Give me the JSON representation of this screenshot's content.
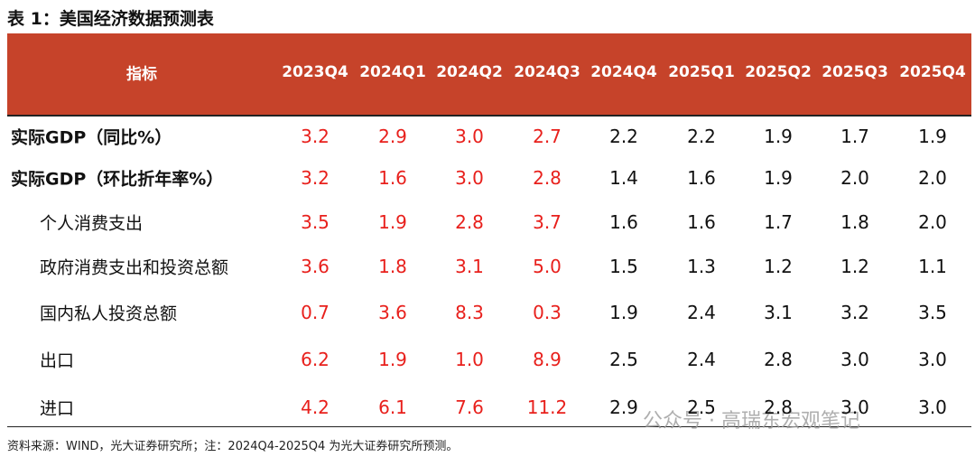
{
  "title": "表 1：美国经济数据预测表",
  "table": {
    "header": [
      "指标",
      "2023Q4",
      "2024Q1",
      "2024Q2",
      "2024Q3",
      "2024Q4",
      "2025Q1",
      "2025Q2",
      "2025Q3",
      "2025Q4"
    ],
    "rows": [
      {
        "label": "实际GDP（同比%）",
        "values": [
          "3.2",
          "2.9",
          "3.0",
          "2.7",
          "2.2",
          "2.2",
          "1.9",
          "1.7",
          "1.9"
        ]
      },
      {
        "label": "实际GDP（环比折年率%）",
        "values": [
          "3.2",
          "1.6",
          "3.0",
          "2.8",
          "1.4",
          "1.6",
          "1.9",
          "2.0",
          "2.0"
        ],
        "components": [
          {
            "label": "个人消费支出",
            "values": [
              "3.5",
              "1.9",
              "2.8",
              "3.7",
              "1.6",
              "1.6",
              "1.7",
              "1.8",
              "2.0"
            ]
          },
          {
            "label": "政府消费支出和投资总额",
            "values": [
              "3.6",
              "1.8",
              "3.1",
              "5.0",
              "1.5",
              "1.3",
              "1.2",
              "1.2",
              "1.1"
            ]
          },
          {
            "label": "国内私人投资总额",
            "values": [
              "0.7",
              "3.6",
              "8.3",
              "0.3",
              "1.9",
              "2.4",
              "3.1",
              "3.2",
              "3.5"
            ]
          },
          {
            "label": "出口",
            "values": [
              "6.2",
              "1.9",
              "1.0",
              "8.9",
              "2.5",
              "2.4",
              "2.8",
              "3.0",
              "3.0"
            ]
          },
          {
            "label": "进口",
            "values": [
              "4.2",
              "6.1",
              "7.6",
              "11.2",
              "2.9",
              "2.5",
              "2.8",
              "3.0",
              "3.0"
            ]
          }
        ]
      }
    ]
  },
  "source": "资料来源：WIND，光大证券研究所；注：2024Q4-2025Q4 为光大证券研究所预测。",
  "watermark": "公众号 · 高瑞东宏观笔记"
}
